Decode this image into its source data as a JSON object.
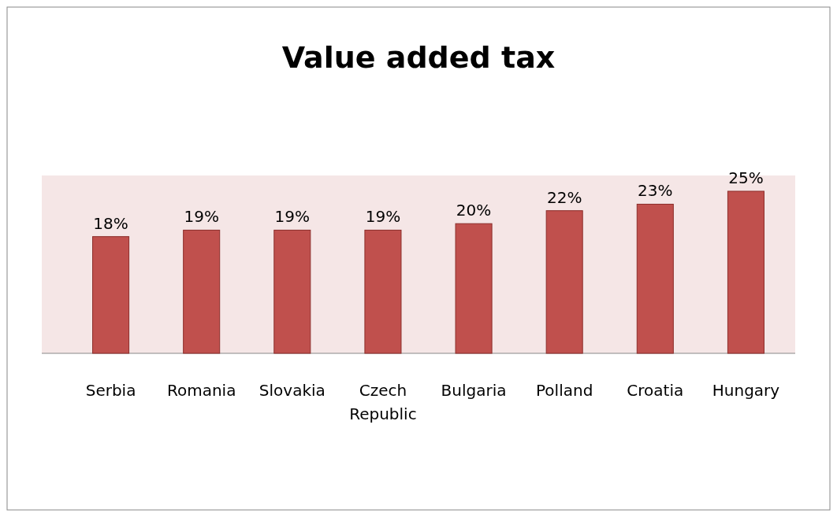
{
  "chart_data": {
    "type": "bar",
    "title": "Value added tax",
    "categories": [
      "Serbia",
      "Romania",
      "Slovakia",
      "Czech Republic",
      "Bulgaria",
      "Polland",
      "Croatia",
      "Hungary"
    ],
    "values": [
      18,
      19,
      19,
      19,
      20,
      22,
      23,
      25
    ],
    "value_labels": [
      "18%",
      "19%",
      "19%",
      "19%",
      "20%",
      "22%",
      "23%",
      "25%"
    ],
    "color": "#c0504d"
  }
}
